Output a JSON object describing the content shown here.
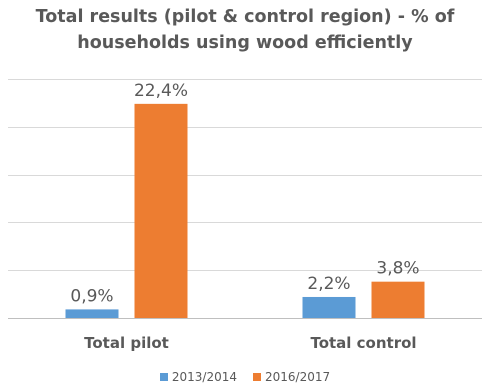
{
  "chart_data": {
    "type": "bar",
    "title_lines": [
      "Total results (pilot & control region) - % of",
      "households using wood efficiently"
    ],
    "categories": [
      "Total pilot",
      "Total control"
    ],
    "series": [
      {
        "name": "2013/2014",
        "values": [
          0.9,
          2.2
        ],
        "labels": [
          "0,9%",
          "2,2%"
        ],
        "color": "#5B9BD5"
      },
      {
        "name": "2016/2017",
        "values": [
          22.4,
          3.8
        ],
        "labels": [
          "22,4%",
          "3,8%"
        ],
        "color": "#ED7D31"
      }
    ],
    "ylim": [
      0,
      25
    ],
    "grid": true,
    "legend_position": "bottom",
    "colors": {
      "grid": "#D9D9D9",
      "axis": "#BFBFBF",
      "text": "#595959",
      "title": "#595959"
    }
  }
}
